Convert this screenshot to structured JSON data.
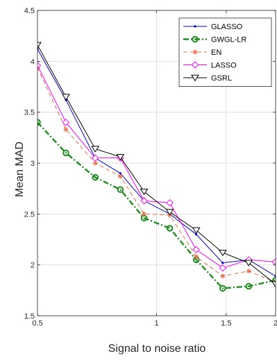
{
  "chart_data": {
    "type": "line",
    "title": "",
    "xlabel": "Signal to noise ratio",
    "ylabel": "Mean MAD",
    "x_scale": "log",
    "xlim": [
      0.5,
      2
    ],
    "ylim": [
      1.5,
      4.5
    ],
    "x_ticks": [
      0.5,
      1,
      1.5,
      2
    ],
    "x_tick_labels": [
      "0.5",
      "1",
      "1.5",
      "2"
    ],
    "y_ticks": [
      1.5,
      2,
      2.5,
      3,
      3.5,
      4,
      4.5
    ],
    "y_tick_labels": [
      "1.5",
      "2",
      "2.5",
      "3",
      "3.5",
      "4",
      "4.5"
    ],
    "grid": true,
    "legend_position": "top-right",
    "x": [
      0.5,
      0.59,
      0.7,
      0.81,
      0.93,
      1.08,
      1.26,
      1.47,
      1.71,
      2.0
    ],
    "series": [
      {
        "name": "GLASSO",
        "color": "#0000cc",
        "dash": "solid",
        "marker": "dot",
        "values": [
          4.12,
          3.62,
          3.05,
          2.9,
          2.63,
          2.5,
          2.3,
          2.02,
          2.05,
          1.89
        ]
      },
      {
        "name": "GWGL-LR",
        "color": "#1e8c1e",
        "dash": "dashdot",
        "marker": "circle",
        "values": [
          3.4,
          3.1,
          2.86,
          2.74,
          2.46,
          2.36,
          2.05,
          1.77,
          1.79,
          1.85
        ]
      },
      {
        "name": "EN",
        "color": "#e2704a",
        "dash": "dashed",
        "marker": "asterisk",
        "values": [
          3.94,
          3.33,
          3.0,
          2.87,
          2.5,
          2.49,
          2.08,
          1.89,
          1.94,
          1.83
        ]
      },
      {
        "name": "LASSO",
        "color": "#ff00ff",
        "dash": "solid",
        "marker": "diamond",
        "values": [
          3.96,
          3.4,
          3.05,
          3.05,
          2.63,
          2.61,
          2.15,
          1.97,
          2.05,
          2.03
        ]
      },
      {
        "name": "GSRL",
        "color": "#000000",
        "dash": "solid",
        "marker": "triangle-down",
        "values": [
          4.16,
          3.65,
          3.14,
          3.06,
          2.72,
          2.52,
          2.34,
          2.12,
          2.02,
          1.81
        ]
      }
    ]
  }
}
